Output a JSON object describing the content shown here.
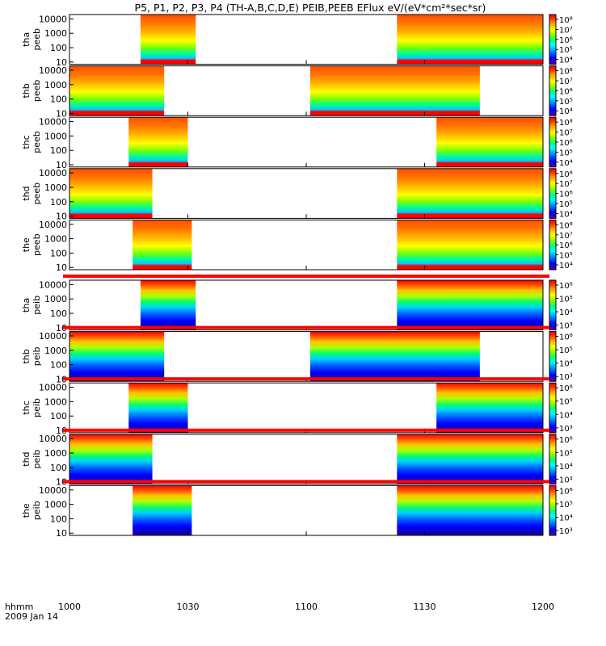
{
  "title": "P5, P1, P2, P3, P4 (TH-A,B,C,D,E) PEIB,PEEB EFlux eV/(eV*cm²*sec*sr)",
  "chart_data": {
    "type": "heatmap",
    "title": "P5, P1, P2, P3, P4 (TH-A,B,C,D,E) PEIB,PEEB EFlux eV/(eV*cm²*sec*sr)",
    "x_axis": {
      "units_label": "hhmm",
      "date_label": "2009 Jan 14",
      "range": [
        1000,
        1200
      ],
      "ticks": [
        "1000",
        "1030",
        "1100",
        "1130",
        "1200"
      ]
    },
    "y_axis": {
      "scale": "log",
      "range": [
        7,
        20000
      ],
      "ticks": [
        "10",
        "100",
        "1000",
        "10000"
      ]
    },
    "colorbar_colors": [
      "#5a00a0",
      "#0000ff",
      "#00a0ff",
      "#00ffff",
      "#00ff80",
      "#80ff00",
      "#ffff00",
      "#ffa000",
      "#ff3000",
      "#ff0000"
    ],
    "panels": [
      {
        "probe": "tha",
        "instrument": "peeb",
        "label_probe": "tha",
        "label_inst": "peeb",
        "species": "electron",
        "coverage": [
          [
            1018,
            1032
          ],
          [
            1123,
            1200
          ]
        ],
        "cbar_ticks": [
          "10⁴",
          "10⁵",
          "10⁶",
          "10⁷",
          "10⁸"
        ]
      },
      {
        "probe": "thb",
        "instrument": "peeb",
        "label_probe": "thb",
        "label_inst": "peeb",
        "species": "electron",
        "coverage": [
          [
            1000,
            1024
          ],
          [
            1101,
            1144
          ]
        ],
        "cbar_ticks": [
          "10⁴",
          "10⁵",
          "10⁶",
          "10⁷",
          "10⁸"
        ]
      },
      {
        "probe": "thc",
        "instrument": "peeb",
        "label_probe": "thc",
        "label_inst": "peeb",
        "species": "electron",
        "coverage": [
          [
            1015,
            1030
          ],
          [
            1133,
            1200
          ]
        ],
        "cbar_ticks": [
          "10⁴",
          "10⁵",
          "10⁶",
          "10⁷",
          "10⁸"
        ]
      },
      {
        "probe": "thd",
        "instrument": "peeb",
        "label_probe": "thd",
        "label_inst": "peeb",
        "species": "electron",
        "coverage": [
          [
            1000,
            1021
          ],
          [
            1123,
            1200
          ]
        ],
        "cbar_ticks": [
          "10⁴",
          "10⁵",
          "10⁶",
          "10⁷",
          "10⁸"
        ]
      },
      {
        "probe": "the",
        "instrument": "peeb",
        "label_probe": "the",
        "label_inst": "peeb",
        "species": "electron",
        "coverage": [
          [
            1016,
            1031
          ],
          [
            1123,
            1200
          ]
        ],
        "cbar_ticks": [
          "10⁴",
          "10⁵",
          "10⁶",
          "10⁷",
          "10⁸"
        ]
      },
      {
        "probe": "tha",
        "instrument": "peib",
        "label_probe": "tha",
        "label_inst": "peib",
        "species": "ion",
        "coverage": [
          [
            1018,
            1032
          ],
          [
            1123,
            1200
          ]
        ],
        "cbar_ticks": [
          "10³",
          "10⁴",
          "10⁵",
          "10⁶"
        ]
      },
      {
        "probe": "thb",
        "instrument": "peib",
        "label_probe": "thb",
        "label_inst": "peib",
        "species": "ion",
        "coverage": [
          [
            1000,
            1024
          ],
          [
            1101,
            1144
          ]
        ],
        "cbar_ticks": [
          "10³",
          "10⁴",
          "10⁵",
          "10⁶"
        ]
      },
      {
        "probe": "thc",
        "instrument": "peib",
        "label_probe": "thc",
        "label_inst": "peib",
        "species": "ion",
        "coverage": [
          [
            1015,
            1030
          ],
          [
            1133,
            1200
          ]
        ],
        "cbar_ticks": [
          "10³",
          "10⁴",
          "10⁵",
          "10⁶"
        ]
      },
      {
        "probe": "thd",
        "instrument": "peib",
        "label_probe": "thd",
        "label_inst": "peib",
        "species": "ion",
        "coverage": [
          [
            1000,
            1021
          ],
          [
            1123,
            1200
          ]
        ],
        "cbar_ticks": [
          "10³",
          "10⁴",
          "10⁵",
          "10⁶"
        ]
      },
      {
        "probe": "the",
        "instrument": "peib",
        "label_probe": "the",
        "label_inst": "peib",
        "species": "ion",
        "coverage": [
          [
            1016,
            1031
          ],
          [
            1123,
            1200
          ]
        ],
        "cbar_ticks": [
          "10³",
          "10⁴",
          "10⁵",
          "10⁶"
        ]
      }
    ]
  }
}
